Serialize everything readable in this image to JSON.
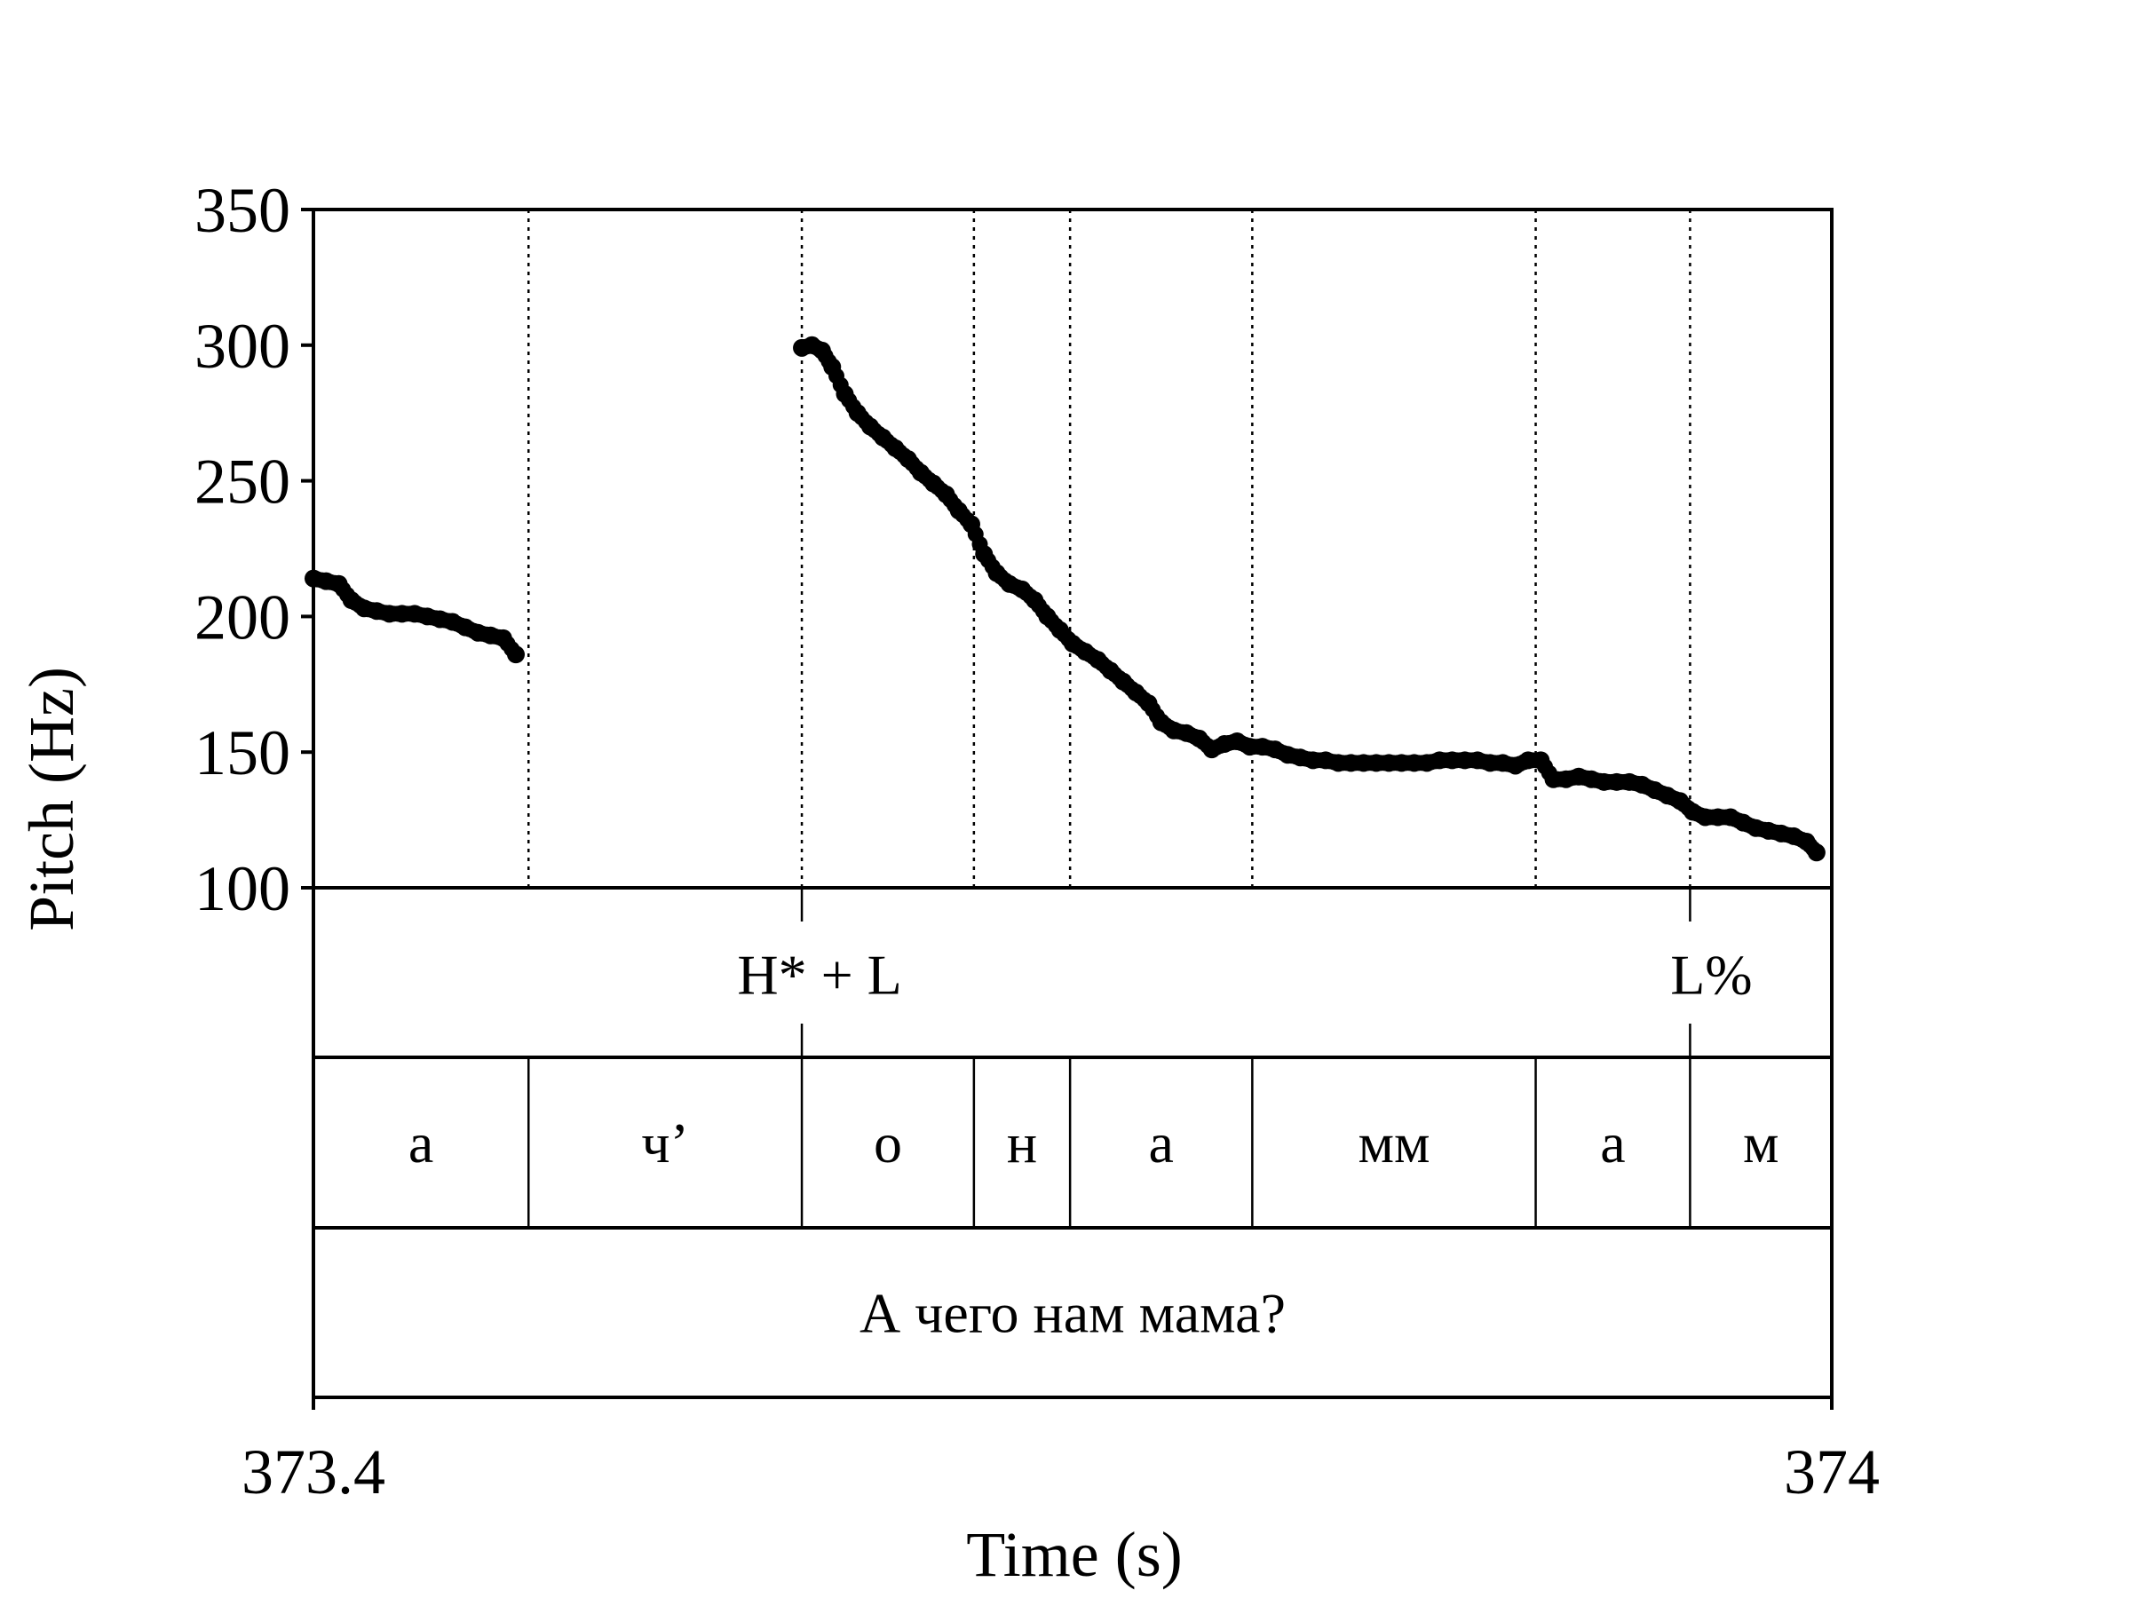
{
  "chart_data": {
    "type": "scatter",
    "title": "",
    "xlabel": "Time (s)",
    "ylabel": "Pitch (Hz)",
    "xlim": [
      373.4,
      374
    ],
    "ylim": [
      100,
      350
    ],
    "x_ticks": [
      "373.4",
      "374"
    ],
    "y_ticks": [
      "100",
      "150",
      "200",
      "250",
      "300",
      "350"
    ],
    "grid": false,
    "pitch_segments": [
      {
        "x": [
          373.4,
          373.405,
          373.41,
          373.415,
          373.42,
          373.425,
          373.43,
          373.435,
          373.44,
          373.445,
          373.45,
          373.455,
          373.46,
          373.465,
          373.47,
          373.475,
          373.48
        ],
        "y": [
          214,
          213,
          212,
          206,
          203,
          202,
          201,
          201,
          201,
          200,
          199,
          198,
          196,
          194,
          193,
          192,
          186
        ]
      },
      {
        "x": [
          373.593,
          373.597,
          373.601,
          373.605,
          373.61,
          373.615,
          373.62,
          373.625,
          373.63,
          373.635,
          373.64,
          373.645,
          373.65,
          373.655,
          373.66,
          373.665,
          373.67,
          373.675,
          373.68,
          373.685,
          373.69,
          373.695,
          373.7,
          373.705,
          373.71,
          373.715,
          373.72,
          373.725,
          373.73,
          373.735,
          373.74,
          373.745,
          373.75,
          373.755,
          373.76,
          373.765,
          373.77,
          373.775,
          373.78,
          373.785,
          373.79,
          373.795,
          373.8,
          373.805,
          373.81,
          373.815,
          373.82,
          373.825,
          373.83,
          373.835,
          373.84,
          373.845,
          373.85,
          373.855,
          373.86,
          373.865,
          373.87,
          373.875,
          373.88,
          373.885,
          373.89,
          373.895,
          373.9,
          373.905,
          373.91,
          373.915,
          373.92,
          373.925,
          373.93,
          373.935,
          373.94,
          373.945,
          373.95,
          373.955,
          373.96,
          373.965,
          373.97,
          373.975,
          373.98,
          373.985,
          373.99,
          373.994
        ],
        "y": [
          299,
          300,
          298,
          292,
          282,
          275,
          270,
          266,
          262,
          258,
          253,
          249,
          245,
          239,
          234,
          223,
          216,
          212,
          210,
          206,
          200,
          195,
          190,
          187,
          184,
          180,
          176,
          172,
          168,
          161,
          158,
          157,
          155,
          151,
          153,
          154,
          152,
          152,
          151,
          149,
          148,
          147,
          147,
          146,
          146,
          146,
          146,
          146,
          146,
          146,
          146,
          147,
          147,
          147,
          147,
          146,
          146,
          145,
          147,
          147,
          140,
          140,
          141,
          140,
          139,
          139,
          139,
          138,
          136,
          134,
          132,
          128,
          126,
          126,
          126,
          124,
          122,
          121,
          120,
          119,
          117,
          113
        ]
      }
    ],
    "tones": {
      "labels": [
        "H* + L",
        "L%"
      ],
      "times": [
        373.593,
        373.944
      ]
    },
    "segments": {
      "boundaries": [
        373.4,
        373.485,
        373.593,
        373.661,
        373.699,
        373.771,
        373.883,
        373.944,
        374.0
      ],
      "labels": [
        "а",
        "ч’",
        "о",
        "н",
        "а",
        "мм",
        "а",
        "м"
      ]
    },
    "utterance": {
      "label": "А чего нам мама?"
    }
  }
}
